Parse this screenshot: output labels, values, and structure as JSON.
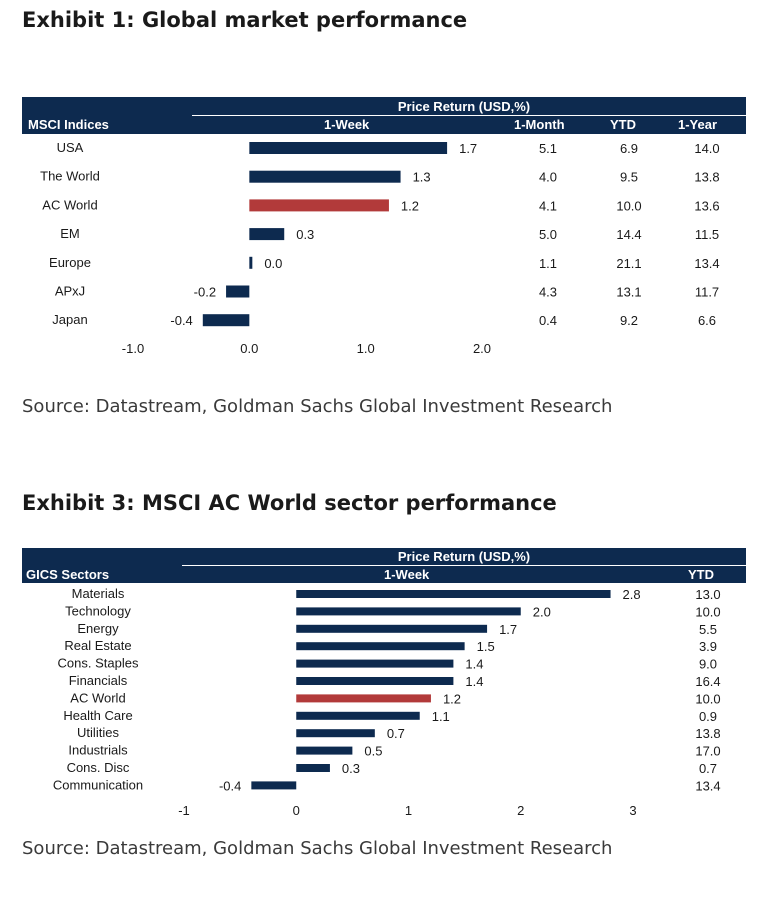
{
  "exhibit1": {
    "title": "Exhibit 1: Global market performance",
    "header_group": "Price Return (USD,%)",
    "header_first": "MSCI Indices",
    "columns": [
      "1-Week",
      "1-Month",
      "YTD",
      "1-Year"
    ],
    "source": "Source: Datastream, Goldman Sachs Global Investment Research"
  },
  "exhibit3": {
    "title": "Exhibit 3: MSCI AC World sector performance",
    "header_group": "Price Return (USD,%)",
    "header_first": "GICS Sectors",
    "columns": [
      "1-Week",
      "YTD"
    ],
    "source": "Source: Datastream, Goldman Sachs Global Investment Research"
  },
  "chart_data": [
    {
      "type": "bar",
      "orientation": "horizontal",
      "categories": [
        "USA",
        "The World",
        "AC World",
        "EM",
        "Europe",
        "APxJ",
        "Japan"
      ],
      "series": [
        {
          "name": "1-Week",
          "values": [
            1.7,
            1.3,
            1.2,
            0.3,
            0.0,
            -0.2,
            -0.4
          ]
        }
      ],
      "value_labels": [
        "1.7",
        "1.3",
        "1.2",
        "0.3",
        "0.0",
        "-0.2",
        "-0.4"
      ],
      "highlight_category": "AC World",
      "xlim": [
        -1.0,
        2.0
      ],
      "xticks": [
        "-1.0",
        "0.0",
        "1.0",
        "2.0"
      ],
      "table_columns": {
        "1-Month": [
          "5.1",
          "4.0",
          "4.1",
          "5.0",
          "1.1",
          "4.3",
          "0.4"
        ],
        "YTD": [
          "6.9",
          "9.5",
          "10.0",
          "14.4",
          "21.1",
          "13.1",
          "9.2"
        ],
        "1-Year": [
          "14.0",
          "13.8",
          "13.6",
          "11.5",
          "13.4",
          "11.7",
          "6.6"
        ]
      },
      "colors": {
        "bar": "#0d2a4f",
        "highlight": "#b23a3a"
      }
    },
    {
      "type": "bar",
      "orientation": "horizontal",
      "categories": [
        "Materials",
        "Technology",
        "Energy",
        "Real Estate",
        "Cons. Staples",
        "Financials",
        "AC World",
        "Health Care",
        "Utilities",
        "Industrials",
        "Cons. Disc",
        "Communication"
      ],
      "series": [
        {
          "name": "1-Week",
          "values": [
            2.8,
            2.0,
            1.7,
            1.5,
            1.4,
            1.4,
            1.2,
            1.1,
            0.7,
            0.5,
            0.3,
            -0.4
          ]
        }
      ],
      "value_labels": [
        "2.8",
        "2.0",
        "1.7",
        "1.5",
        "1.4",
        "1.4",
        "1.2",
        "1.1",
        "0.7",
        "0.5",
        "0.3",
        "-0.4"
      ],
      "highlight_category": "AC World",
      "xlim": [
        -1,
        3
      ],
      "xticks": [
        "-1",
        "0",
        "1",
        "2",
        "3"
      ],
      "table_columns": {
        "YTD": [
          "13.0",
          "10.0",
          "5.5",
          "3.9",
          "9.0",
          "16.4",
          "10.0",
          "0.9",
          "13.8",
          "17.0",
          "0.7",
          "13.4"
        ]
      },
      "colors": {
        "bar": "#0d2a4f",
        "highlight": "#b23a3a"
      }
    }
  ]
}
